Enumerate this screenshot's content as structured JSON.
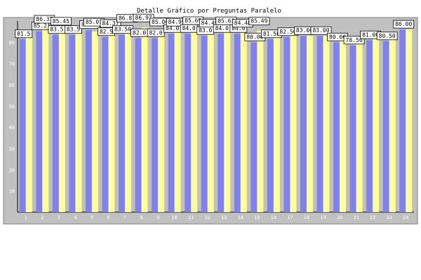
{
  "chart_data": {
    "type": "bar",
    "title": "Detalle Gráfico por Preguntas Paralelo",
    "xlabel": "",
    "ylabel": "",
    "categories": [
      "1",
      "2",
      "3",
      "4",
      "5",
      "6",
      "7",
      "8",
      "9",
      "10",
      "11",
      "12",
      "13",
      "14",
      "15",
      "16",
      "17",
      "18",
      "19",
      "20",
      "21",
      "22",
      "23",
      "24"
    ],
    "yticks": [
      10,
      20,
      30,
      40,
      50,
      60,
      70,
      80
    ],
    "ylim": [
      0,
      90
    ],
    "grid": false,
    "series": [
      {
        "color": "#8080f0",
        "values": [
          81.5,
          85.2,
          83.5,
          83.5,
          85.8,
          82.5,
          83.5,
          82.0,
          82.0,
          84.0,
          84.0,
          83.0,
          84.0,
          84.0,
          80.0,
          81.5,
          82.5,
          83.0,
          83.0,
          80.0,
          78.5,
          81.0,
          80.5,
          86.0
        ],
        "labels": [
          "81.5",
          "85.2",
          "83.5",
          "83.5",
          "85.79",
          "82.5",
          "83.50",
          "82.0",
          "82.0",
          "84.0",
          "84.0",
          "83.0",
          "84.0",
          "84.0",
          "80.00",
          "81.50",
          "82.50",
          "83.00",
          "83.00",
          "80.00",
          "78.50",
          "81.00",
          "80.50",
          "86.00"
        ]
      },
      {
        "color": "#ffff99",
        "values": [
          83.0,
          86.37,
          85.45,
          85.0,
          85.01,
          84.37,
          86.81,
          86.97,
          85.06,
          84.99,
          85.69,
          84.49,
          85.63,
          84.48,
          85.49,
          84.0,
          85.0,
          83.0,
          83.0,
          82.0,
          82.0,
          82.0,
          82.0,
          86.0
        ],
        "labels": [
          "",
          "86.37",
          "85.45",
          "",
          "85.01",
          "84.37",
          "86.81",
          "86.97",
          "85.06",
          "84.99",
          "85.69",
          "84.49",
          "85.63",
          "84.48",
          "85.49",
          "",
          "",
          "",
          "",
          "",
          "",
          "",
          "",
          ""
        ]
      }
    ]
  }
}
